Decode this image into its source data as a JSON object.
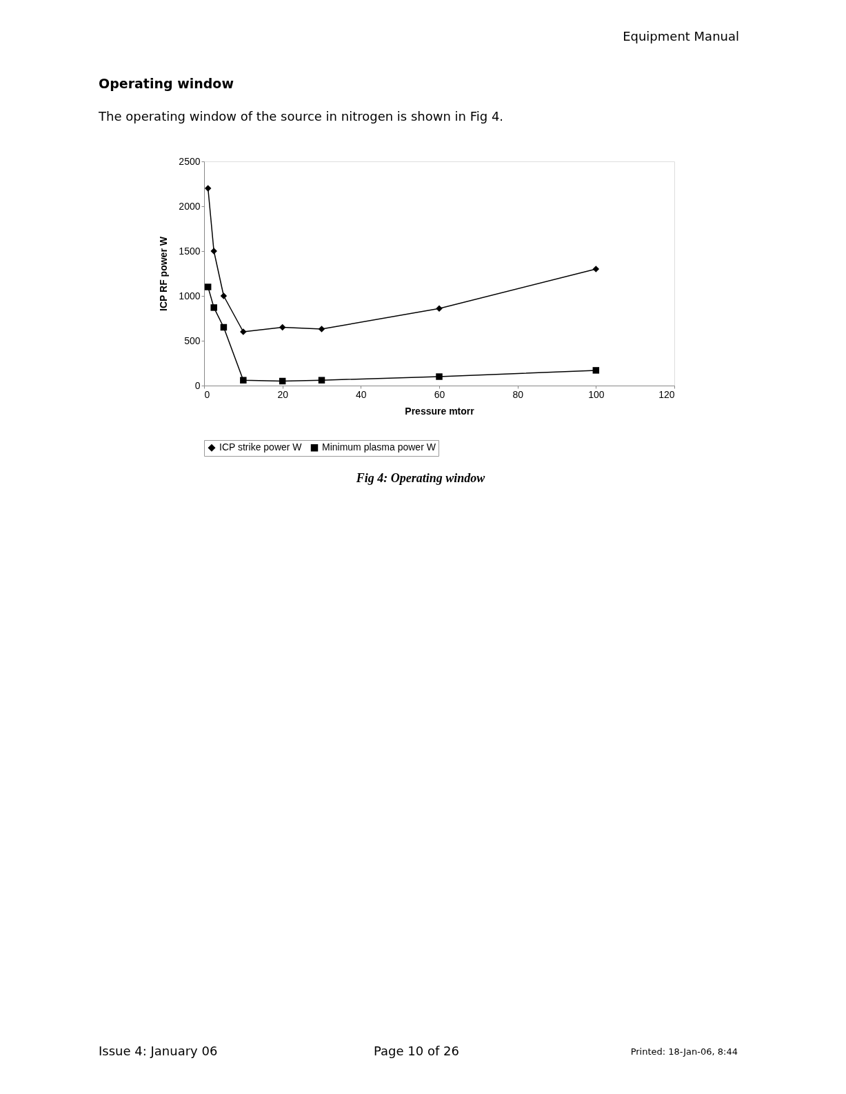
{
  "chart_data": {
    "type": "line",
    "title": "Operating window",
    "subtitle": "The operating window of the source in nitrogen is shown in Fig 4.",
    "xlabel": "Pressure mtorr",
    "ylabel": "ICP RF power W",
    "x": [
      1,
      2.5,
      5,
      10,
      20,
      30,
      60,
      100
    ],
    "series": [
      {
        "name": "ICP strike power W",
        "color": "#000000",
        "marker": "diamond",
        "values": [
          2200,
          1500,
          1000,
          600,
          650,
          630,
          860,
          1300
        ]
      },
      {
        "name": "Minimum plasma power W",
        "color": "#000000",
        "marker": "square",
        "values": [
          1100,
          870,
          650,
          60,
          50,
          60,
          100,
          170
        ]
      }
    ],
    "xlim": [
      0,
      120
    ],
    "xticks": [
      0,
      20,
      40,
      60,
      80,
      100,
      120
    ],
    "ylim": [
      0,
      2500
    ],
    "yticks": [
      0,
      500,
      1000,
      1500,
      2000,
      2500
    ],
    "grid": false,
    "legend": "bottom",
    "line_style": "solid",
    "annotations": [
      "Equipment Manual",
      "Fig 4: Operating window",
      "Issue 4: January 06",
      "Page 10 of 26",
      "Printed: 18-Jan-06, 8:44"
    ]
  }
}
